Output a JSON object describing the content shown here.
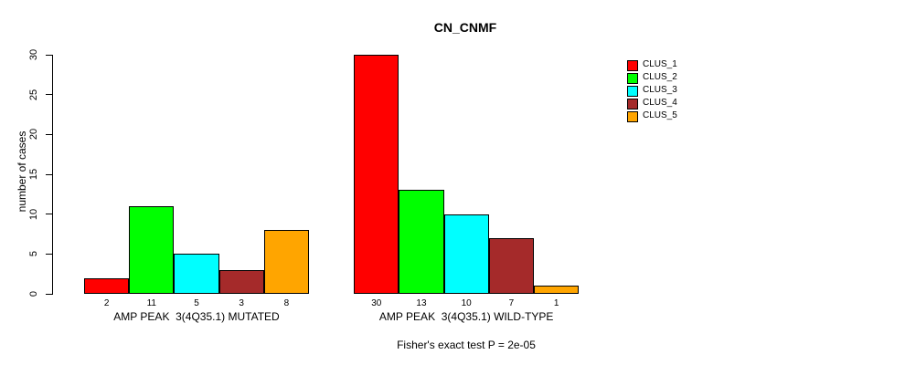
{
  "chart_data": {
    "type": "bar",
    "title": "CN_CNMF",
    "ylabel": "number of cases",
    "ylim": [
      0,
      30
    ],
    "yticks": [
      0,
      5,
      10,
      15,
      20,
      25,
      30
    ],
    "grid": false,
    "legend_position": "right",
    "categories": [
      "AMP PEAK  3(4Q35.1) MUTATED",
      "AMP PEAK  3(4Q35.1) WILD-TYPE"
    ],
    "groups": [
      {
        "label": "AMP PEAK  3(4Q35.1) MUTATED",
        "values": [
          2,
          11,
          5,
          3,
          8
        ]
      },
      {
        "label": "AMP PEAK  3(4Q35.1) WILD-TYPE",
        "values": [
          30,
          13,
          10,
          7,
          1
        ]
      }
    ],
    "series": [
      {
        "name": "CLUS_1",
        "color": "#FF0000",
        "values": [
          2,
          30
        ]
      },
      {
        "name": "CLUS_2",
        "color": "#00FF00",
        "values": [
          11,
          13
        ]
      },
      {
        "name": "CLUS_3",
        "color": "#00FFFF",
        "values": [
          5,
          10
        ]
      },
      {
        "name": "CLUS_4",
        "color": "#A52A2A",
        "values": [
          3,
          7
        ]
      },
      {
        "name": "CLUS_5",
        "color": "#FFA500",
        "values": [
          8,
          1
        ]
      }
    ],
    "legend": [
      {
        "label": "CLUS_1",
        "color": "#FF0000"
      },
      {
        "label": "CLUS_2",
        "color": "#00FF00"
      },
      {
        "label": "CLUS_3",
        "color": "#00FFFF"
      },
      {
        "label": "CLUS_4",
        "color": "#A52A2A"
      },
      {
        "label": "CLUS_5",
        "color": "#FFA500"
      }
    ],
    "bar_value_labels_shown": true,
    "annotation": "Fisher's exact test P = 2e-05",
    "colors": {
      "background": "#FFFFFF",
      "axis": "#000000",
      "text": "#000000"
    }
  }
}
